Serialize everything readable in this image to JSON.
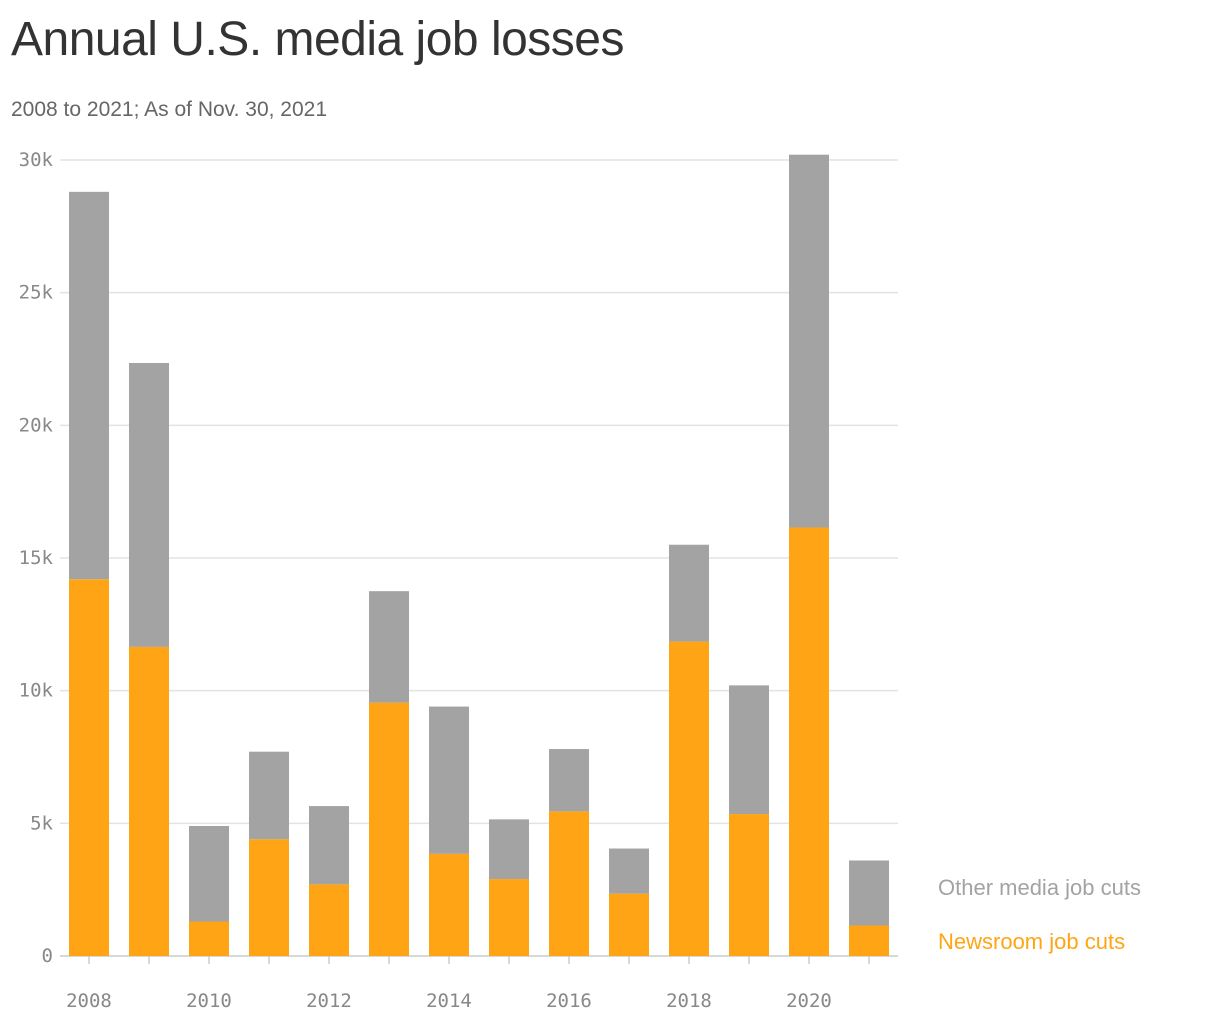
{
  "chart_data": {
    "type": "bar",
    "stacked": true,
    "title": "Annual U.S. media job losses",
    "subtitle": "2008 to 2021; As of Nov. 30, 2021",
    "xlabel": "",
    "ylabel": "",
    "ylim": [
      0,
      30000
    ],
    "y_ticks": [
      0,
      5000,
      10000,
      15000,
      20000,
      25000,
      30000
    ],
    "y_tick_labels": [
      "0",
      "5k",
      "10k",
      "15k",
      "20k",
      "25k",
      "30k"
    ],
    "categories": [
      "2008",
      "2009",
      "2010",
      "2011",
      "2012",
      "2013",
      "2014",
      "2015",
      "2016",
      "2017",
      "2018",
      "2019",
      "2020",
      "2021"
    ],
    "x_tick_labels": [
      "2008",
      "2010",
      "2012",
      "2014",
      "2016",
      "2018",
      "2020"
    ],
    "grid": true,
    "legend_position": "bottom-right",
    "series": [
      {
        "name": "Newsroom job cuts",
        "color": "#FFA515",
        "values": [
          14200,
          11650,
          1300,
          4400,
          2700,
          9550,
          3850,
          2900,
          5450,
          2350,
          11850,
          5350,
          16150,
          1150
        ]
      },
      {
        "name": "Other media job cuts",
        "color": "#A2A3A2",
        "values": [
          14600,
          10700,
          3600,
          3300,
          2950,
          4200,
          5550,
          2250,
          2350,
          1700,
          3650,
          4850,
          14050,
          2450
        ]
      }
    ]
  }
}
